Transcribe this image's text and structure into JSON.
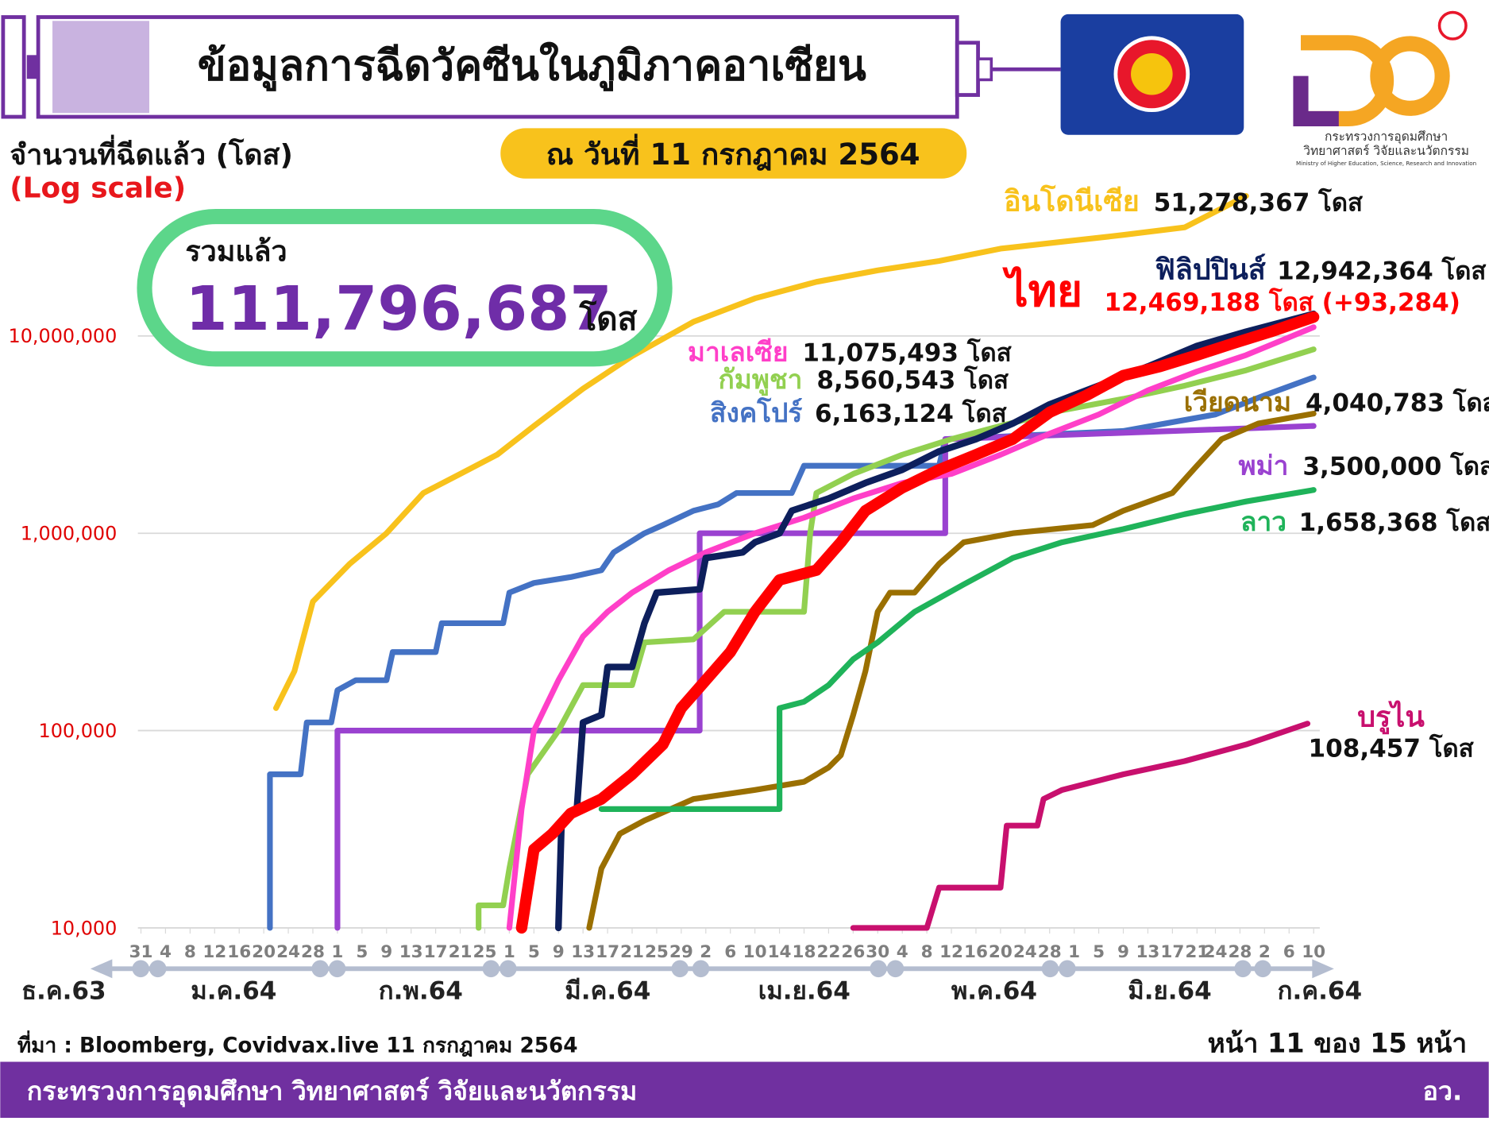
{
  "header": {
    "title": "ข้อมูลการฉีดวัคซีนในภูมิภาคอาเซียน",
    "date": "ณ วันที่ 11 กรกฎาคม 2564"
  },
  "logo": {
    "lines": [
      "กระทรวงการอุดมศึกษา",
      "วิทยาศาสตร์ วิจัยและนวัตกรรม",
      "Ministry of Higher Education, Science, Research and Innovation"
    ]
  },
  "total": {
    "label": "รวมแล้ว",
    "value": "111,796,687",
    "unit": "โดส"
  },
  "source": "ที่มา : Bloomberg, Covidvax.live 11 กรกฎาคม 2564",
  "page": "หน้า 11 ของ 15 หน้า",
  "footer": {
    "ministry": "กระทรวงการอุดมศึกษา วิทยาศาสตร์ วิจัยและนวัตกรรม",
    "abbr": "อว."
  },
  "chart_data": {
    "type": "line",
    "y_axis_title": "จำนวนที่ฉีดแล้ว (โดส)",
    "y_scale_note": "(Log scale)",
    "log_scale": true,
    "grid": true,
    "xlim": [
      -0.5,
      192
    ],
    "ylim": [
      10000,
      100000000
    ],
    "yticks": [
      {
        "value": 10000,
        "label": "10,000"
      },
      {
        "value": 100000,
        "label": "100,000"
      },
      {
        "value": 1000000,
        "label": "1,000,000"
      },
      {
        "value": 10000000,
        "label": "10,000,000"
      }
    ],
    "xticks": [
      {
        "value": 0,
        "label": "31"
      },
      {
        "value": 4,
        "label": "4"
      },
      {
        "value": 8,
        "label": "8"
      },
      {
        "value": 12,
        "label": "12"
      },
      {
        "value": 16,
        "label": "16"
      },
      {
        "value": 20,
        "label": "20"
      },
      {
        "value": 24,
        "label": "24"
      },
      {
        "value": 28,
        "label": "28"
      },
      {
        "value": 32,
        "label": "1"
      },
      {
        "value": 36,
        "label": "5"
      },
      {
        "value": 40,
        "label": "9"
      },
      {
        "value": 44,
        "label": "13"
      },
      {
        "value": 48,
        "label": "17"
      },
      {
        "value": 52,
        "label": "21"
      },
      {
        "value": 56,
        "label": "25"
      },
      {
        "value": 60,
        "label": "1"
      },
      {
        "value": 64,
        "label": "5"
      },
      {
        "value": 68,
        "label": "9"
      },
      {
        "value": 72,
        "label": "13"
      },
      {
        "value": 76,
        "label": "17"
      },
      {
        "value": 80,
        "label": "21"
      },
      {
        "value": 84,
        "label": "25"
      },
      {
        "value": 88,
        "label": "29"
      },
      {
        "value": 92,
        "label": "2"
      },
      {
        "value": 96,
        "label": "6"
      },
      {
        "value": 100,
        "label": "10"
      },
      {
        "value": 104,
        "label": "14"
      },
      {
        "value": 108,
        "label": "18"
      },
      {
        "value": 112,
        "label": "22"
      },
      {
        "value": 116,
        "label": "26"
      },
      {
        "value": 120,
        "label": "30"
      },
      {
        "value": 124,
        "label": "4"
      },
      {
        "value": 128,
        "label": "8"
      },
      {
        "value": 132,
        "label": "12"
      },
      {
        "value": 136,
        "label": "16"
      },
      {
        "value": 140,
        "label": "20"
      },
      {
        "value": 144,
        "label": "24"
      },
      {
        "value": 148,
        "label": "28"
      },
      {
        "value": 152,
        "label": "1"
      },
      {
        "value": 156,
        "label": "5"
      },
      {
        "value": 160,
        "label": "9"
      },
      {
        "value": 164,
        "label": "13"
      },
      {
        "value": 168,
        "label": "17"
      },
      {
        "value": 172,
        "label": "21"
      },
      {
        "value": 175,
        "label": "24"
      },
      {
        "value": 179,
        "label": "28"
      },
      {
        "value": 183,
        "label": "2"
      },
      {
        "value": 187,
        "label": "6"
      },
      {
        "value": 191,
        "label": "10"
      }
    ],
    "months": [
      "ธ.ค.63",
      "ม.ค.64",
      "ก.พ.64",
      "มี.ค.64",
      "เม.ย.64",
      "พ.ค.64",
      "มิ.ย.64",
      "ก.ค.64"
    ],
    "series": [
      {
        "name": "อินโดนีเซีย",
        "color": "#f8c21c",
        "total_label": "51,278,367 โดส",
        "x": [
          22,
          25,
          28,
          34,
          40,
          46,
          52,
          58,
          64,
          72,
          80,
          90,
          100,
          110,
          120,
          130,
          140,
          150,
          160,
          170,
          180
        ],
        "values": [
          130000,
          200000,
          450000,
          700000,
          1000000,
          1600000,
          2000000,
          2500000,
          3500000,
          5400000,
          7900000,
          11800000,
          15500000,
          18800000,
          21500000,
          24000000,
          27700000,
          30000000,
          32500000,
          35500000,
          51278367
        ]
      },
      {
        "name": "สิงคโปร์",
        "color": "#4472c4",
        "total_label": "6,163,124 โดส",
        "x": [
          21,
          21,
          26,
          27,
          31,
          32,
          35,
          40,
          41,
          48,
          49,
          59,
          60,
          64,
          70,
          75,
          77,
          82,
          85,
          90,
          94,
          97,
          106,
          108,
          130,
          131,
          160,
          175,
          183,
          191
        ],
        "values": [
          10000,
          60000,
          60000,
          110000,
          110000,
          160000,
          180000,
          180000,
          250000,
          250000,
          350000,
          350000,
          500000,
          560000,
          600000,
          650000,
          800000,
          1000000,
          1100000,
          1300000,
          1400000,
          1600000,
          1600000,
          2200000,
          2200000,
          3000000,
          3300000,
          4000000,
          5000000,
          6163124
        ]
      },
      {
        "name": "พม่า",
        "color": "#9a42d0",
        "total_label": "3,500,000 โดส",
        "x": [
          32,
          32,
          91,
          91,
          131,
          131,
          191
        ],
        "values": [
          10000,
          100000,
          100000,
          1000000,
          1000000,
          3000000,
          3500000
        ]
      },
      {
        "name": "เวียดนาม",
        "color": "#9a6f00",
        "total_label": "4,040,783 โดส",
        "x": [
          73,
          75,
          78,
          82,
          90,
          100,
          108,
          112,
          114,
          116,
          118,
          120,
          122,
          126,
          130,
          134,
          142,
          155,
          160,
          168,
          172,
          176,
          182,
          191
        ],
        "values": [
          10000,
          20000,
          30000,
          35000,
          45000,
          50000,
          55000,
          65000,
          75000,
          120000,
          200000,
          400000,
          500000,
          500000,
          700000,
          900000,
          1000000,
          1100000,
          1300000,
          1600000,
          2200000,
          3000000,
          3600000,
          4040783
        ]
      },
      {
        "name": "ลาว",
        "color": "#1fb35a",
        "total_label": "1,658,368 โดส",
        "x": [
          75,
          104,
          104,
          108,
          112,
          116,
          120,
          126,
          134,
          142,
          150,
          160,
          170,
          180,
          191
        ],
        "values": [
          40000,
          40000,
          130000,
          140000,
          170000,
          230000,
          280000,
          400000,
          550000,
          750000,
          900000,
          1050000,
          1250000,
          1450000,
          1658368
        ]
      },
      {
        "name": "กัมพูชา",
        "color": "#92d050",
        "total_label": "8,560,543 โดส",
        "x": [
          55,
          55,
          59,
          60,
          63,
          68,
          72,
          80,
          82,
          90,
          95,
          108,
          109,
          110,
          116,
          124,
          132,
          140,
          150,
          160,
          170,
          180,
          191
        ],
        "values": [
          10000,
          13000,
          13000,
          20000,
          60000,
          100000,
          170000,
          170000,
          280000,
          290000,
          400000,
          400000,
          1000000,
          1600000,
          2000000,
          2500000,
          3000000,
          3500000,
          4200000,
          4800000,
          5600000,
          6700000,
          8560543
        ]
      },
      {
        "name": "มาเลเซีย",
        "color": "#ff3fc8",
        "total_label": "11,075,493 โดส",
        "x": [
          60,
          62,
          64,
          68,
          72,
          76,
          80,
          86,
          92,
          100,
          108,
          116,
          124,
          132,
          140,
          148,
          156,
          164,
          172,
          180,
          191
        ],
        "values": [
          10000,
          40000,
          100000,
          180000,
          300000,
          400000,
          500000,
          650000,
          800000,
          1000000,
          1200000,
          1500000,
          1800000,
          2000000,
          2500000,
          3200000,
          4000000,
          5300000,
          6600000,
          8000000,
          11075493
        ]
      },
      {
        "name": "บรูไน",
        "color": "#c8106e",
        "total_label": "108,457 โดส",
        "x": [
          116,
          128,
          130,
          140,
          141,
          146,
          147,
          150,
          160,
          170,
          180,
          190
        ],
        "values": [
          10000,
          10000,
          16000,
          16000,
          33000,
          33000,
          45000,
          50000,
          60000,
          70000,
          85000,
          108457
        ]
      },
      {
        "name": "ฟิลิปปินส์",
        "color": "#0d1f5c",
        "total_label": "12,942,364 โดส",
        "x": [
          68,
          68.5,
          71,
          72,
          75,
          76,
          80,
          82,
          84,
          91,
          92,
          98,
          100,
          104,
          106,
          112,
          118,
          124,
          130,
          136,
          142,
          148,
          156,
          164,
          172,
          180,
          191
        ],
        "values": [
          10000,
          35000,
          40000,
          110000,
          120000,
          210000,
          210000,
          350000,
          500000,
          520000,
          750000,
          800000,
          900000,
          1000000,
          1300000,
          1500000,
          1800000,
          2100000,
          2600000,
          3000000,
          3600000,
          4500000,
          5600000,
          7000000,
          8900000,
          10500000,
          12942364
        ]
      },
      {
        "name": "ไทย",
        "color": "#ff0000",
        "total_label": "12,469,188 โดส (+93,284)",
        "x": [
          62,
          64,
          67,
          70,
          75,
          80,
          85,
          88,
          92,
          96,
          100,
          104,
          110,
          114,
          118,
          124,
          130,
          136,
          142,
          148,
          154,
          160,
          166,
          172,
          178,
          184,
          191
        ],
        "values": [
          10000,
          25000,
          30000,
          38000,
          45000,
          60000,
          85000,
          130000,
          180000,
          250000,
          400000,
          580000,
          650000,
          900000,
          1300000,
          1700000,
          2100000,
          2500000,
          3000000,
          4100000,
          5000000,
          6300000,
          7000000,
          8000000,
          9200000,
          10500000,
          12469188
        ]
      }
    ]
  }
}
